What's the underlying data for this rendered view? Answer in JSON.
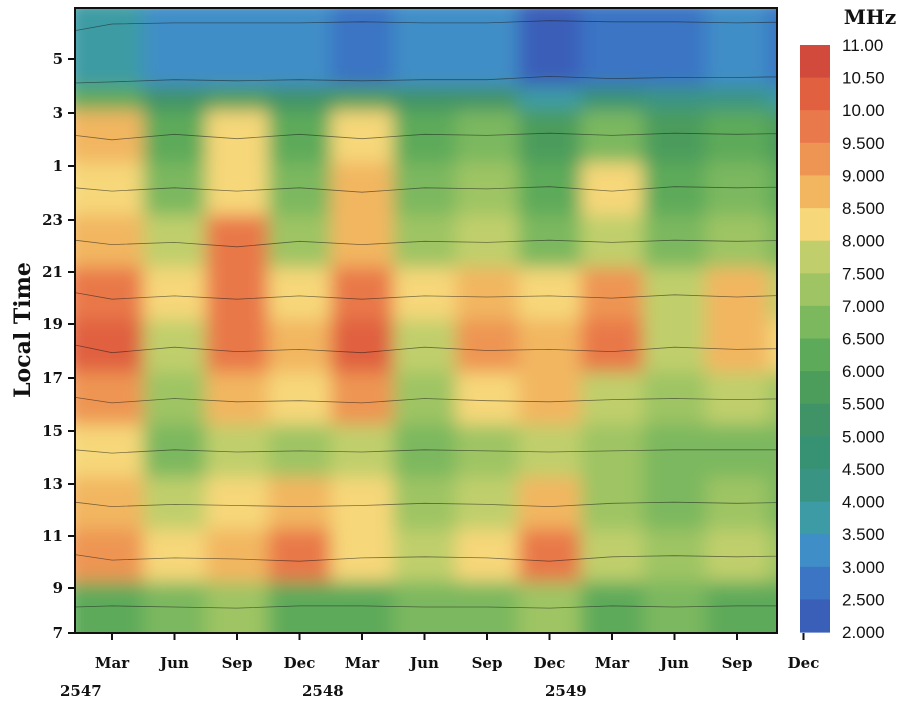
{
  "chart_data": {
    "type": "heatmap",
    "title": "",
    "ylabel": "Local Time",
    "xlabel": "",
    "colorbar": {
      "unit": "MHz",
      "levels": [
        "11.00",
        "10.50",
        "10.00",
        "9.500",
        "9.000",
        "8.500",
        "8.000",
        "7.500",
        "7.000",
        "6.500",
        "6.000",
        "5.500",
        "5.000",
        "4.500",
        "4.000",
        "3.500",
        "3.000",
        "2.500",
        "2.000"
      ],
      "colors": [
        "#d24a3c",
        "#e0603f",
        "#e9784a",
        "#ee9553",
        "#f2b660",
        "#f6d779",
        "#c0cf6c",
        "#9ec463",
        "#7cb85e",
        "#5daa5a",
        "#4c9c5b",
        "#3f9366",
        "#379274",
        "#3a9483",
        "#3c9ba4",
        "#3f8ec7",
        "#3b75c4",
        "#3a5fb9",
        "#3350a8"
      ]
    },
    "x_tick_labels": [
      "Mar",
      "Jun",
      "Sep",
      "Dec",
      "Mar",
      "Jun",
      "Sep",
      "Dec",
      "Mar",
      "Jun",
      "Sep",
      "Dec"
    ],
    "year_labels": [
      "2547",
      "2548",
      "2549"
    ],
    "y_tick_labels": [
      "5",
      "3",
      "1",
      "23",
      "21",
      "19",
      "17",
      "15",
      "13",
      "11",
      "9",
      "7"
    ],
    "x_months": [
      "Mar 2547",
      "Jun 2547",
      "Sep 2547",
      "Dec 2547",
      "Mar 2548",
      "Jun 2548",
      "Sep 2548",
      "Dec 2548",
      "Mar 2549",
      "Jun 2549",
      "Sep 2549",
      "Dec 2549"
    ],
    "y_hours": [
      7,
      9,
      11,
      13,
      15,
      17,
      19,
      21,
      23,
      1,
      3,
      5
    ],
    "foF2_MHz": [
      [
        6.5,
        7.0,
        7.5,
        6.5,
        6.5,
        7.0,
        7.0,
        7.5,
        6.5,
        7.0,
        6.5,
        6.5
      ],
      [
        9.5,
        8.5,
        9.0,
        10.0,
        8.5,
        8.0,
        8.5,
        10.0,
        8.0,
        7.5,
        8.0,
        7.5
      ],
      [
        9.0,
        8.0,
        8.5,
        9.0,
        8.5,
        7.5,
        8.0,
        9.0,
        7.5,
        7.0,
        7.5,
        7.0
      ],
      [
        8.5,
        7.0,
        8.0,
        7.5,
        8.0,
        7.0,
        7.5,
        8.0,
        7.5,
        7.0,
        7.0,
        7.0
      ],
      [
        9.5,
        7.5,
        9.0,
        8.5,
        9.5,
        7.5,
        8.5,
        9.0,
        8.0,
        7.5,
        8.0,
        7.5
      ],
      [
        10.5,
        8.0,
        10.0,
        9.0,
        10.5,
        8.0,
        9.5,
        9.0,
        10.0,
        8.0,
        9.0,
        8.5
      ],
      [
        10.0,
        8.5,
        10.0,
        8.5,
        10.0,
        8.5,
        9.0,
        8.5,
        9.5,
        8.0,
        9.0,
        8.0
      ],
      [
        9.0,
        8.0,
        10.0,
        7.5,
        9.0,
        7.5,
        8.0,
        7.0,
        8.0,
        7.0,
        7.5,
        7.0
      ],
      [
        8.5,
        7.0,
        8.5,
        7.0,
        9.0,
        7.0,
        7.5,
        6.5,
        8.5,
        6.5,
        7.0,
        6.5
      ],
      [
        9.0,
        6.5,
        8.5,
        6.5,
        8.5,
        6.5,
        7.0,
        6.0,
        7.0,
        6.0,
        6.5,
        6.0
      ],
      [
        6.5,
        5.5,
        6.0,
        5.5,
        6.0,
        5.5,
        5.5,
        4.0,
        5.0,
        4.5,
        4.5,
        4.0
      ],
      [
        4.0,
        3.5,
        3.5,
        3.5,
        3.0,
        3.5,
        3.5,
        2.5,
        3.0,
        3.0,
        3.5,
        3.0
      ]
    ]
  }
}
